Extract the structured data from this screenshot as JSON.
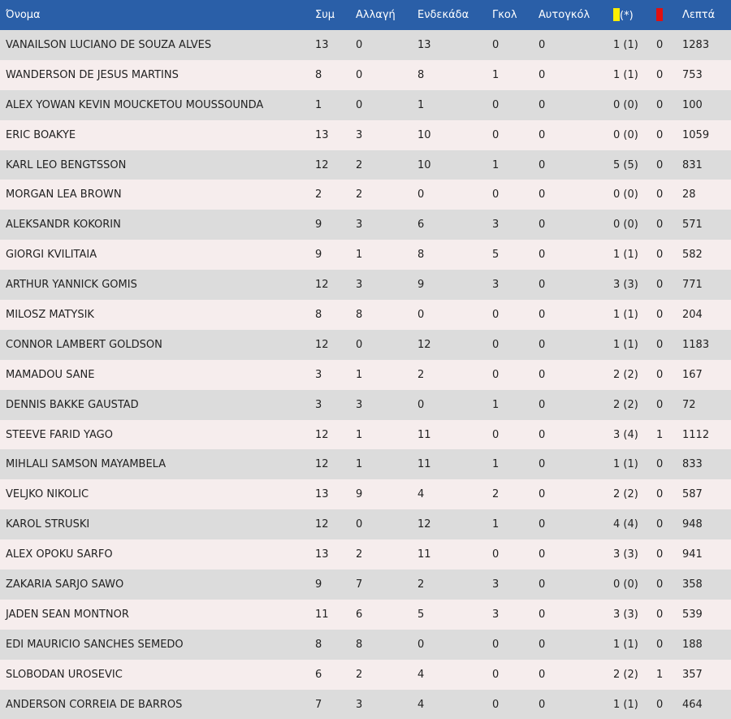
{
  "header": {
    "name": "Όνομα",
    "apps": "Συμ",
    "subs": "Αλλαγή",
    "starts": "Ενδεκάδα",
    "goals": "Γκολ",
    "own_goals": "Αυτογκόλ",
    "yellow_suffix": "(*)",
    "minutes": "Λεπτά"
  },
  "colors": {
    "header_bg": "#2a5fa8",
    "yellow_card": "#ffee00",
    "red_card": "#e01010"
  },
  "icons": {
    "yellow": "yellow-card-icon",
    "red": "red-card-icon"
  },
  "rows": [
    {
      "name": "VANAILSON LUCIANO DE SOUZA ALVES",
      "apps": "13",
      "subs": "0",
      "starts": "13",
      "goals": "0",
      "own_goals": "0",
      "yellow": "1 (1)",
      "red": "0",
      "minutes": "1283"
    },
    {
      "name": "WANDERSON DE JESUS MARTINS",
      "apps": "8",
      "subs": "0",
      "starts": "8",
      "goals": "1",
      "own_goals": "0",
      "yellow": "1 (1)",
      "red": "0",
      "minutes": "753"
    },
    {
      "name": "ALEX YOWAN KEVIN MOUCKETOU MOUSSOUNDA",
      "apps": "1",
      "subs": "0",
      "starts": "1",
      "goals": "0",
      "own_goals": "0",
      "yellow": "0 (0)",
      "red": "0",
      "minutes": "100"
    },
    {
      "name": "ERIC BOAKYE",
      "apps": "13",
      "subs": "3",
      "starts": "10",
      "goals": "0",
      "own_goals": "0",
      "yellow": "0 (0)",
      "red": "0",
      "minutes": "1059"
    },
    {
      "name": "KARL LEO BENGTSSON",
      "apps": "12",
      "subs": "2",
      "starts": "10",
      "goals": "1",
      "own_goals": "0",
      "yellow": "5 (5)",
      "red": "0",
      "minutes": "831"
    },
    {
      "name": "MORGAN LEA BROWN",
      "apps": "2",
      "subs": "2",
      "starts": "0",
      "goals": "0",
      "own_goals": "0",
      "yellow": "0 (0)",
      "red": "0",
      "minutes": "28"
    },
    {
      "name": "ALEKSANDR KOKORIN",
      "apps": "9",
      "subs": "3",
      "starts": "6",
      "goals": "3",
      "own_goals": "0",
      "yellow": "0 (0)",
      "red": "0",
      "minutes": "571"
    },
    {
      "name": "GIORGI KVILITAIA",
      "apps": "9",
      "subs": "1",
      "starts": "8",
      "goals": "5",
      "own_goals": "0",
      "yellow": "1 (1)",
      "red": "0",
      "minutes": "582"
    },
    {
      "name": "ARTHUR YANNICK GOMIS",
      "apps": "12",
      "subs": "3",
      "starts": "9",
      "goals": "3",
      "own_goals": "0",
      "yellow": "3 (3)",
      "red": "0",
      "minutes": "771"
    },
    {
      "name": "MILOSZ MATYSIK",
      "apps": "8",
      "subs": "8",
      "starts": "0",
      "goals": "0",
      "own_goals": "0",
      "yellow": "1 (1)",
      "red": "0",
      "minutes": "204"
    },
    {
      "name": "CONNOR LAMBERT GOLDSON",
      "apps": "12",
      "subs": "0",
      "starts": "12",
      "goals": "0",
      "own_goals": "0",
      "yellow": "1 (1)",
      "red": "0",
      "minutes": "1183"
    },
    {
      "name": "MAMADOU SANE",
      "apps": "3",
      "subs": "1",
      "starts": "2",
      "goals": "0",
      "own_goals": "0",
      "yellow": "2 (2)",
      "red": "0",
      "minutes": "167"
    },
    {
      "name": "DENNIS BAKKE GAUSTAD",
      "apps": "3",
      "subs": "3",
      "starts": "0",
      "goals": "1",
      "own_goals": "0",
      "yellow": "2 (2)",
      "red": "0",
      "minutes": "72"
    },
    {
      "name": "STEEVE FARID YAGO",
      "apps": "12",
      "subs": "1",
      "starts": "11",
      "goals": "0",
      "own_goals": "0",
      "yellow": "3 (4)",
      "red": "1",
      "minutes": "1112"
    },
    {
      "name": "MIHLALI SAMSON MAYAMBELA",
      "apps": "12",
      "subs": "1",
      "starts": "11",
      "goals": "1",
      "own_goals": "0",
      "yellow": "1 (1)",
      "red": "0",
      "minutes": "833"
    },
    {
      "name": "VELJKO NIKOLIC",
      "apps": "13",
      "subs": "9",
      "starts": "4",
      "goals": "2",
      "own_goals": "0",
      "yellow": "2 (2)",
      "red": "0",
      "minutes": "587"
    },
    {
      "name": "KAROL STRUSKI",
      "apps": "12",
      "subs": "0",
      "starts": "12",
      "goals": "1",
      "own_goals": "0",
      "yellow": "4 (4)",
      "red": "0",
      "minutes": "948"
    },
    {
      "name": "ALEX OPOKU SARFO",
      "apps": "13",
      "subs": "2",
      "starts": "11",
      "goals": "0",
      "own_goals": "0",
      "yellow": "3 (3)",
      "red": "0",
      "minutes": "941"
    },
    {
      "name": "ZAKARIA SARJO SAWO",
      "apps": "9",
      "subs": "7",
      "starts": "2",
      "goals": "3",
      "own_goals": "0",
      "yellow": "0 (0)",
      "red": "0",
      "minutes": "358"
    },
    {
      "name": "JADEN SEAN MONTNOR",
      "apps": "11",
      "subs": "6",
      "starts": "5",
      "goals": "3",
      "own_goals": "0",
      "yellow": "3 (3)",
      "red": "0",
      "minutes": "539"
    },
    {
      "name": "EDI MAURICIO SANCHES SEMEDO",
      "apps": "8",
      "subs": "8",
      "starts": "0",
      "goals": "0",
      "own_goals": "0",
      "yellow": "1 (1)",
      "red": "0",
      "minutes": "188"
    },
    {
      "name": "SLOBODAN UROSEVIC",
      "apps": "6",
      "subs": "2",
      "starts": "4",
      "goals": "0",
      "own_goals": "0",
      "yellow": "2 (2)",
      "red": "1",
      "minutes": "357"
    },
    {
      "name": "ANDERSON CORREIA DE BARROS",
      "apps": "7",
      "subs": "3",
      "starts": "4",
      "goals": "0",
      "own_goals": "0",
      "yellow": "1 (1)",
      "red": "0",
      "minutes": "464"
    }
  ]
}
